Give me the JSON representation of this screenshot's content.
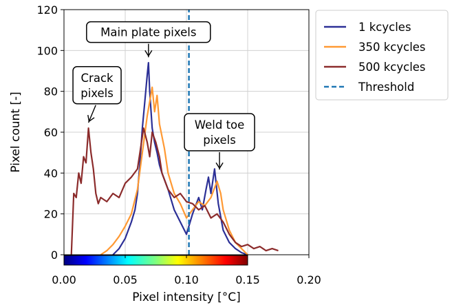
{
  "chart_data": {
    "type": "line",
    "xlabel": "Pixel intensity [°C]",
    "ylabel": "Pixel count [-]",
    "xlim": [
      0.0,
      0.2
    ],
    "ylim": [
      0,
      120
    ],
    "x_ticks": [
      "0.00",
      "0.05",
      "0.10",
      "0.15",
      "0.20"
    ],
    "y_ticks": [
      "0",
      "20",
      "40",
      "60",
      "80",
      "100",
      "120"
    ],
    "grid": true,
    "legend_position": "outside-right",
    "colorbar": {
      "range": [
        0.0,
        0.15
      ],
      "colormap": "jet"
    },
    "series": [
      {
        "name": "1 kcycles",
        "color": "#2b2f96",
        "x": [
          0.04,
          0.045,
          0.05,
          0.055,
          0.058,
          0.06,
          0.062,
          0.064,
          0.066,
          0.068,
          0.069,
          0.07,
          0.072,
          0.074,
          0.076,
          0.078,
          0.08,
          0.085,
          0.09,
          0.095,
          0.1,
          0.105,
          0.11,
          0.113,
          0.116,
          0.118,
          0.12,
          0.123,
          0.126,
          0.13,
          0.135,
          0.14,
          0.145,
          0.15
        ],
        "y": [
          0,
          3,
          8,
          16,
          22,
          30,
          45,
          62,
          75,
          88,
          94,
          80,
          62,
          55,
          50,
          44,
          40,
          32,
          22,
          16,
          10,
          20,
          28,
          22,
          32,
          38,
          30,
          42,
          25,
          12,
          6,
          3,
          1,
          0
        ]
      },
      {
        "name": "350 kcycles",
        "color": "#ff9933",
        "x": [
          0.03,
          0.035,
          0.04,
          0.045,
          0.05,
          0.055,
          0.06,
          0.064,
          0.068,
          0.07,
          0.072,
          0.074,
          0.076,
          0.078,
          0.08,
          0.082,
          0.085,
          0.09,
          0.095,
          0.1,
          0.105,
          0.11,
          0.115,
          0.12,
          0.125,
          0.128,
          0.13,
          0.135,
          0.14,
          0.145,
          0.15
        ],
        "y": [
          0,
          2,
          5,
          9,
          14,
          20,
          32,
          50,
          68,
          75,
          82,
          70,
          78,
          64,
          58,
          52,
          40,
          30,
          25,
          18,
          22,
          26,
          24,
          28,
          36,
          30,
          22,
          12,
          6,
          3,
          0
        ]
      },
      {
        "name": "500 kcycles",
        "color": "#8b2b2b",
        "x": [
          0.006,
          0.008,
          0.01,
          0.012,
          0.014,
          0.016,
          0.018,
          0.02,
          0.022,
          0.024,
          0.026,
          0.028,
          0.03,
          0.035,
          0.04,
          0.045,
          0.05,
          0.055,
          0.06,
          0.062,
          0.065,
          0.068,
          0.07,
          0.072,
          0.075,
          0.078,
          0.08,
          0.085,
          0.09,
          0.095,
          0.1,
          0.105,
          0.11,
          0.115,
          0.12,
          0.125,
          0.13,
          0.135,
          0.14,
          0.145,
          0.15,
          0.155,
          0.16,
          0.165,
          0.17,
          0.175
        ],
        "y": [
          0,
          30,
          28,
          40,
          35,
          48,
          45,
          62,
          50,
          42,
          30,
          25,
          28,
          26,
          30,
          28,
          35,
          38,
          42,
          50,
          62,
          55,
          48,
          60,
          55,
          48,
          40,
          32,
          28,
          30,
          26,
          25,
          22,
          24,
          18,
          20,
          16,
          10,
          6,
          4,
          5,
          3,
          4,
          2,
          3,
          2
        ]
      },
      {
        "name": "Threshold",
        "color": "#1f77b4",
        "style": "dashed",
        "x": [
          0.102,
          0.102
        ],
        "y": [
          0,
          120
        ]
      }
    ],
    "annotations": [
      {
        "id": "main-plate",
        "lines": [
          "Main plate pixels"
        ],
        "box_at": [
          0.069,
          109
        ],
        "arrow_to": [
          0.069,
          96
        ]
      },
      {
        "id": "crack",
        "lines": [
          "Crack",
          "pixels"
        ],
        "box_at": [
          0.027,
          83
        ],
        "arrow_to": [
          0.02,
          64
        ]
      },
      {
        "id": "weld-toe",
        "lines": [
          "Weld toe",
          "pixels"
        ],
        "box_at": [
          0.127,
          60
        ],
        "arrow_to": [
          0.127,
          41
        ]
      }
    ]
  }
}
